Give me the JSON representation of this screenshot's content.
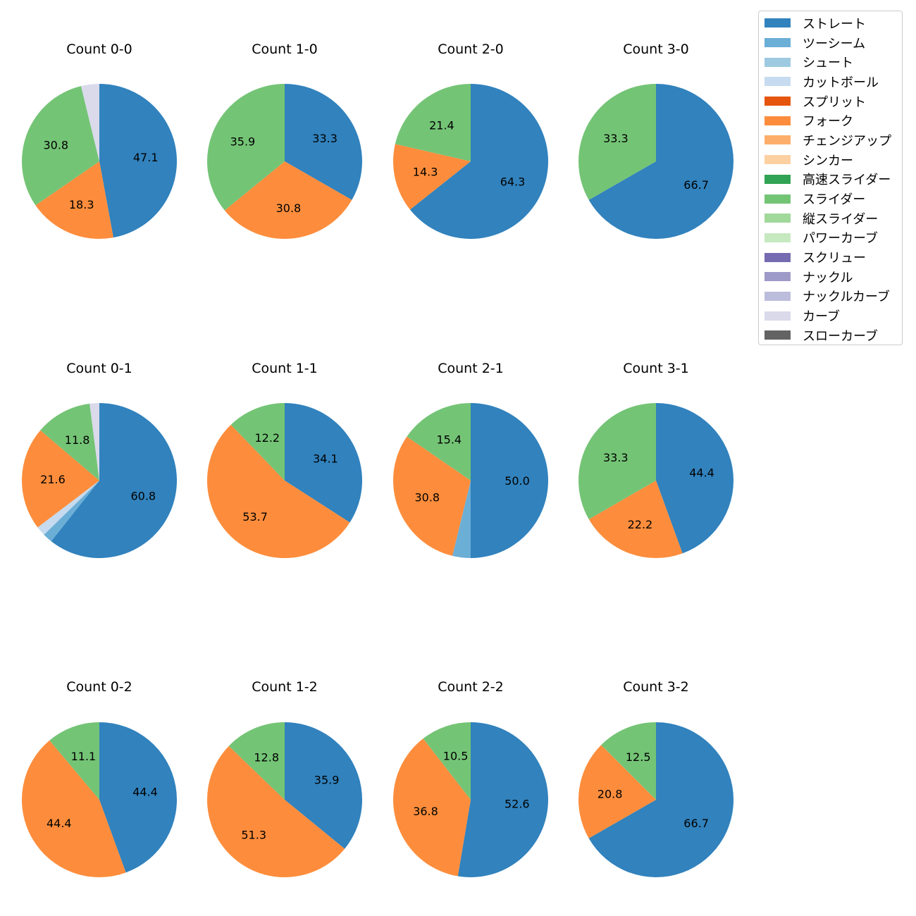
{
  "chart_data": {
    "type": "pie",
    "pitch_types": [
      {
        "name": "ストレート",
        "color": "#3182bd"
      },
      {
        "name": "ツーシーム",
        "color": "#6baed6"
      },
      {
        "name": "シュート",
        "color": "#9ecae1"
      },
      {
        "name": "カットボール",
        "color": "#c6dbef"
      },
      {
        "name": "スプリット",
        "color": "#e6550d"
      },
      {
        "name": "フォーク",
        "color": "#fd8d3c"
      },
      {
        "name": "チェンジアップ",
        "color": "#fdae6b"
      },
      {
        "name": "シンカー",
        "color": "#fdd0a2"
      },
      {
        "name": "高速スライダー",
        "color": "#31a354"
      },
      {
        "name": "スライダー",
        "color": "#74c476"
      },
      {
        "name": "縦スライダー",
        "color": "#a1d99b"
      },
      {
        "name": "パワーカーブ",
        "color": "#c7e9c0"
      },
      {
        "name": "スクリュー",
        "color": "#756bb1"
      },
      {
        "name": "ナックル",
        "color": "#9e9ac8"
      },
      {
        "name": "ナックルカーブ",
        "color": "#bcbddc"
      },
      {
        "name": "カーブ",
        "color": "#dadaeb"
      },
      {
        "name": "スローカーブ",
        "color": "#636363"
      }
    ],
    "pies": [
      {
        "title": "Count 0-0",
        "slices": [
          {
            "type": "ストレート",
            "value": 47.1,
            "label": "47.1"
          },
          {
            "type": "フォーク",
            "value": 18.3,
            "label": "18.3"
          },
          {
            "type": "スライダー",
            "value": 30.8,
            "label": "30.8"
          },
          {
            "type": "カーブ",
            "value": 3.8,
            "label": ""
          }
        ]
      },
      {
        "title": "Count 1-0",
        "slices": [
          {
            "type": "ストレート",
            "value": 33.3,
            "label": "33.3"
          },
          {
            "type": "フォーク",
            "value": 30.8,
            "label": "30.8"
          },
          {
            "type": "スライダー",
            "value": 35.9,
            "label": "35.9"
          }
        ]
      },
      {
        "title": "Count 2-0",
        "slices": [
          {
            "type": "ストレート",
            "value": 64.3,
            "label": "64.3"
          },
          {
            "type": "フォーク",
            "value": 14.3,
            "label": "14.3"
          },
          {
            "type": "スライダー",
            "value": 21.4,
            "label": "21.4"
          }
        ]
      },
      {
        "title": "Count 3-0",
        "slices": [
          {
            "type": "ストレート",
            "value": 66.7,
            "label": "66.7"
          },
          {
            "type": "スライダー",
            "value": 33.3,
            "label": "33.3"
          }
        ]
      },
      {
        "title": "Count 0-1",
        "slices": [
          {
            "type": "ストレート",
            "value": 60.8,
            "label": "60.8"
          },
          {
            "type": "ツーシーム",
            "value": 2.0,
            "label": ""
          },
          {
            "type": "カットボール",
            "value": 2.0,
            "label": ""
          },
          {
            "type": "フォーク",
            "value": 21.6,
            "label": "21.6"
          },
          {
            "type": "スライダー",
            "value": 11.8,
            "label": "11.8"
          },
          {
            "type": "カーブ",
            "value": 2.0,
            "label": ""
          }
        ]
      },
      {
        "title": "Count 1-1",
        "slices": [
          {
            "type": "ストレート",
            "value": 34.1,
            "label": "34.1"
          },
          {
            "type": "フォーク",
            "value": 53.7,
            "label": "53.7"
          },
          {
            "type": "スライダー",
            "value": 12.2,
            "label": "12.2"
          }
        ]
      },
      {
        "title": "Count 2-1",
        "slices": [
          {
            "type": "ストレート",
            "value": 50.0,
            "label": "50.0"
          },
          {
            "type": "ツーシーム",
            "value": 3.8,
            "label": ""
          },
          {
            "type": "フォーク",
            "value": 30.8,
            "label": "30.8"
          },
          {
            "type": "スライダー",
            "value": 15.4,
            "label": "15.4"
          }
        ]
      },
      {
        "title": "Count 3-1",
        "slices": [
          {
            "type": "ストレート",
            "value": 44.4,
            "label": "44.4"
          },
          {
            "type": "フォーク",
            "value": 22.2,
            "label": "22.2"
          },
          {
            "type": "スライダー",
            "value": 33.3,
            "label": "33.3"
          }
        ]
      },
      {
        "title": "Count 0-2",
        "slices": [
          {
            "type": "ストレート",
            "value": 44.4,
            "label": "44.4"
          },
          {
            "type": "フォーク",
            "value": 44.4,
            "label": "44.4"
          },
          {
            "type": "スライダー",
            "value": 11.1,
            "label": "11.1"
          }
        ]
      },
      {
        "title": "Count 1-2",
        "slices": [
          {
            "type": "ストレート",
            "value": 35.9,
            "label": "35.9"
          },
          {
            "type": "フォーク",
            "value": 51.3,
            "label": "51.3"
          },
          {
            "type": "スライダー",
            "value": 12.8,
            "label": "12.8"
          }
        ]
      },
      {
        "title": "Count 2-2",
        "slices": [
          {
            "type": "ストレート",
            "value": 52.6,
            "label": "52.6"
          },
          {
            "type": "フォーク",
            "value": 36.8,
            "label": "36.8"
          },
          {
            "type": "スライダー",
            "value": 10.5,
            "label": "10.5"
          }
        ]
      },
      {
        "title": "Count 3-2",
        "slices": [
          {
            "type": "ストレート",
            "value": 66.7,
            "label": "66.7"
          },
          {
            "type": "フォーク",
            "value": 20.8,
            "label": "20.8"
          },
          {
            "type": "スライダー",
            "value": 12.5,
            "label": "12.5"
          }
        ]
      }
    ]
  }
}
